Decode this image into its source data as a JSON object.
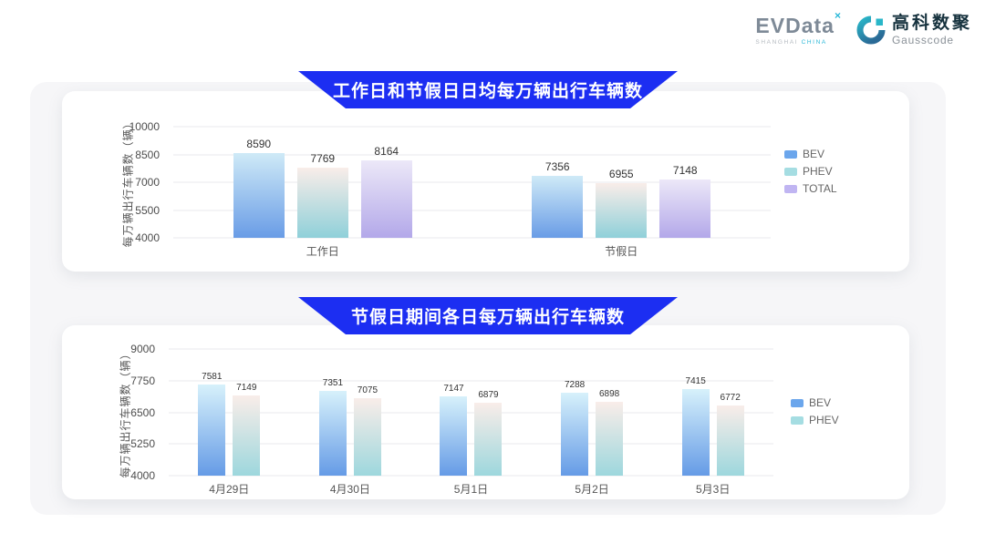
{
  "logo": {
    "evdata": {
      "wordmark": "EVData",
      "sup_mark": "×",
      "tagline_shanghai": "SHANGHAI",
      "tagline_china": "CHINA"
    },
    "gausscode": {
      "icon": "gausscode-g-icon",
      "name_cn": "高科数聚",
      "name_en": "Gausscode"
    }
  },
  "colors": {
    "banner_blue": "#1c2ef2",
    "panel_grey": "#f6f6f8",
    "card_white": "#ffffff",
    "gridline": "#e8e9ec",
    "tick_text": "#4d4d4d",
    "value_label_text": "#333333",
    "legend_text": "#666666",
    "gausscode_teal": "#29b6c8"
  },
  "chart_data": [
    {
      "type": "bar",
      "title": "工作日和节假日日均每万辆出行车辆数",
      "ylabel": "每万辆出行车辆数（辆）",
      "xlabel": "",
      "ylim": [
        4000,
        10000
      ],
      "yticks": [
        4000,
        5500,
        7000,
        8500,
        10000
      ],
      "grid": true,
      "legend_position": "right",
      "categories": [
        "工作日",
        "节假日"
      ],
      "series": [
        {
          "name": "BEV",
          "values": [
            8590,
            7356
          ],
          "gradient_top": "#cfeaf7",
          "gradient_bottom": "#699ce6",
          "legend_color": "#6ba6ec"
        },
        {
          "name": "PHEV",
          "values": [
            7769,
            6955
          ],
          "gradient_top": "#f9ede9",
          "gradient_bottom": "#8fd0d9",
          "legend_color": "#a5dde2"
        },
        {
          "name": "TOTAL",
          "values": [
            8164,
            7148
          ],
          "gradient_top": "#ece8f8",
          "gradient_bottom": "#b3a8e9",
          "legend_color": "#c0b5f2"
        }
      ]
    },
    {
      "type": "bar",
      "title": "节假日期间各日每万辆出行车辆数",
      "ylabel": "每万辆出行车辆数（辆）",
      "xlabel": "",
      "ylim": [
        4000,
        9000
      ],
      "yticks": [
        4000,
        5250,
        6500,
        7750,
        9000
      ],
      "grid": true,
      "legend_position": "right",
      "categories": [
        "4月29日",
        "4月30日",
        "5月1日",
        "5月2日",
        "5月3日"
      ],
      "series": [
        {
          "name": "BEV",
          "values": [
            7581,
            7351,
            7147,
            7288,
            7415
          ],
          "gradient_top": "#d7f1fb",
          "gradient_bottom": "#659be6",
          "legend_color": "#6ba6ec"
        },
        {
          "name": "PHEV",
          "values": [
            7149,
            7075,
            6879,
            6898,
            6772
          ],
          "gradient_top": "#f9ede9",
          "gradient_bottom": "#9dd7dd",
          "legend_color": "#a5dde2"
        }
      ]
    }
  ]
}
